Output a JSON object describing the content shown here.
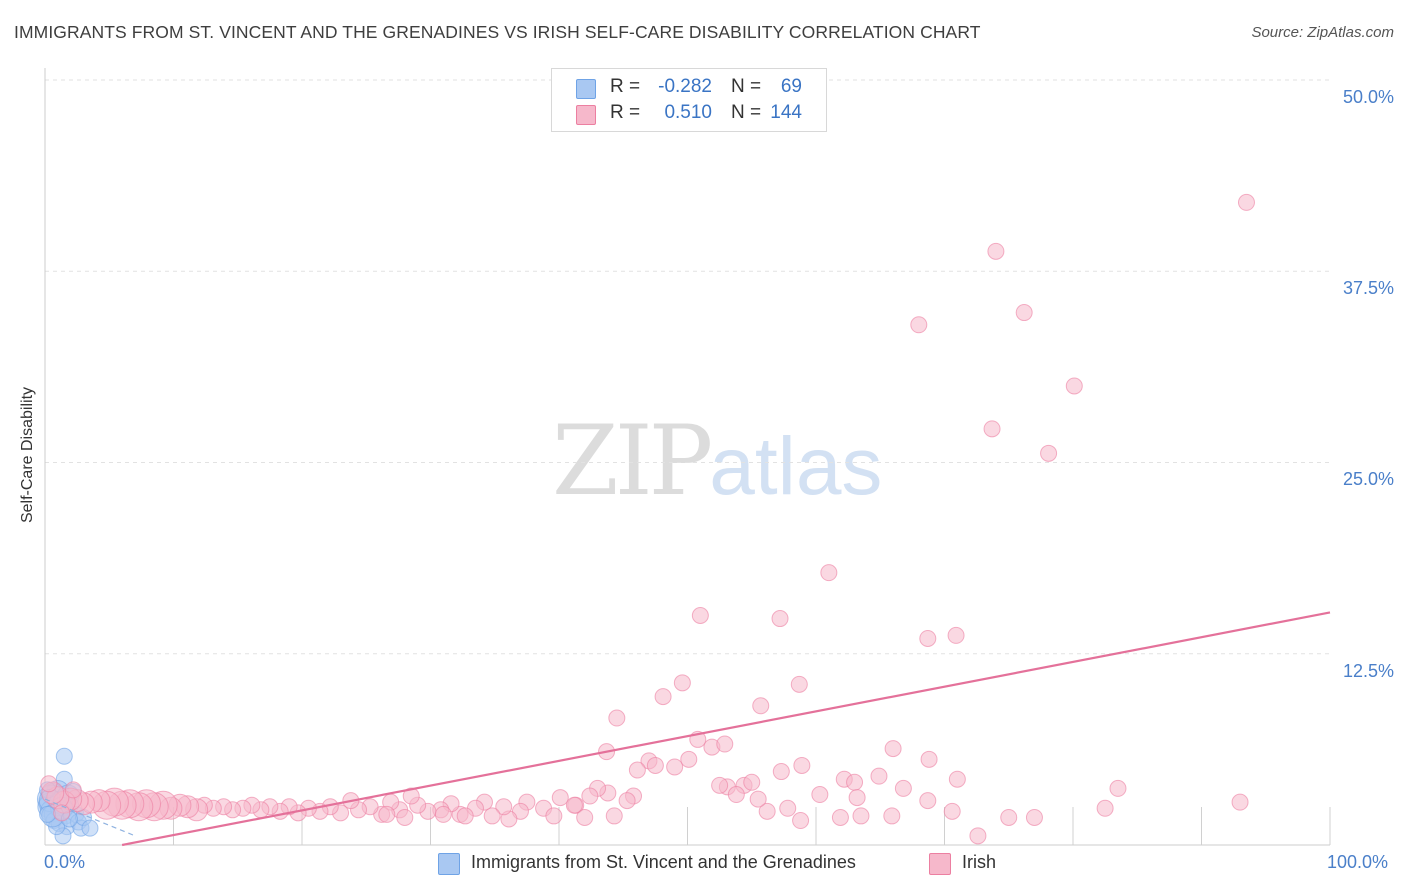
{
  "title": "IMMIGRANTS FROM ST. VINCENT AND THE GRENADINES VS IRISH SELF-CARE DISABILITY CORRELATION CHART",
  "source": "Source: ZipAtlas.com",
  "watermark": {
    "zip": "ZIP",
    "atlas": "atlas"
  },
  "legend": {
    "rows": [
      {
        "r_label": "R =",
        "r_value": "-0.282",
        "n_label": "N =",
        "n_value": "69",
        "color": "#a9c8f2"
      },
      {
        "r_label": "R =",
        "r_value": "0.510",
        "n_label": "N =",
        "n_value": "144",
        "color": "#f6b8cb"
      }
    ]
  },
  "bottom_legend": [
    {
      "label": "Immigrants from St. Vincent and the Grenadines",
      "color": "#a9c8f2"
    },
    {
      "label": "Irish",
      "color": "#f6b8cb"
    }
  ],
  "chart_data": {
    "type": "scatter",
    "title": "IMMIGRANTS FROM ST. VINCENT AND THE GRENADINES VS IRISH SELF-CARE DISABILITY CORRELATION CHART",
    "xlabel": "",
    "ylabel": "Self-Care Disability",
    "xlim": [
      0,
      100
    ],
    "ylim": [
      0,
      50
    ],
    "x_tick_labels": [
      {
        "value": 0,
        "label": "0.0%"
      },
      {
        "value": 100,
        "label": "100.0%"
      }
    ],
    "y_tick_labels": [
      {
        "value": 12.5,
        "label": "12.5%"
      },
      {
        "value": 25.0,
        "label": "25.0%"
      },
      {
        "value": 37.5,
        "label": "37.5%"
      },
      {
        "value": 50.0,
        "label": "50.0%"
      }
    ],
    "grid": true,
    "series": [
      {
        "name": "Immigrants from St. Vincent and the Grenadines",
        "color": "#6fa3e6",
        "fill": "#a9c8f2",
        "trend": {
          "x": [
            0,
            7.0
          ],
          "y": [
            3.0,
            0.6
          ],
          "style": "dashed"
        },
        "points": [
          [
            1.5,
            5.8,
            1
          ],
          [
            1.5,
            4.3,
            1
          ],
          [
            1.0,
            3.5,
            2
          ],
          [
            0.6,
            3.3,
            2
          ],
          [
            0.5,
            3.0,
            3
          ],
          [
            0.4,
            2.7,
            2
          ],
          [
            0.3,
            2.5,
            2
          ],
          [
            0.5,
            2.2,
            2
          ],
          [
            0.8,
            2.0,
            2
          ],
          [
            1.2,
            2.8,
            2
          ],
          [
            1.8,
            3.2,
            2
          ],
          [
            2.0,
            2.6,
            1
          ],
          [
            1.6,
            2.1,
            2
          ],
          [
            2.4,
            2.0,
            1
          ],
          [
            0.7,
            1.6,
            1
          ],
          [
            1.1,
            1.4,
            1
          ],
          [
            1.7,
            1.2,
            1
          ],
          [
            2.6,
            1.5,
            1
          ],
          [
            2.8,
            1.1,
            1
          ],
          [
            3.0,
            1.8,
            1
          ],
          [
            3.5,
            1.1,
            1
          ],
          [
            1.4,
            0.6,
            1
          ],
          [
            0.9,
            1.2,
            1
          ],
          [
            0.2,
            3.6,
            1
          ],
          [
            2.2,
            3.5,
            1
          ],
          [
            0.4,
            2.9,
            2
          ],
          [
            1.3,
            2.4,
            2
          ],
          [
            0.6,
            1.9,
            2
          ],
          [
            1.9,
            1.7,
            1
          ],
          [
            0.2,
            2.0,
            1
          ]
        ]
      },
      {
        "name": "Irish",
        "color": "#ec7fa1",
        "fill": "#f6b8cb",
        "trend": {
          "x": [
            6.0,
            100
          ],
          "y": [
            0.0,
            15.2
          ],
          "style": "solid"
        },
        "points": [
          [
            93.5,
            42.0,
            1
          ],
          [
            74.0,
            38.8,
            1
          ],
          [
            68.0,
            34.0,
            1
          ],
          [
            76.2,
            34.8,
            1
          ],
          [
            80.1,
            30.0,
            1
          ],
          [
            73.7,
            27.2,
            1
          ],
          [
            78.1,
            25.6,
            1
          ],
          [
            61.0,
            17.8,
            1
          ],
          [
            51.0,
            15.0,
            1
          ],
          [
            57.2,
            14.8,
            1
          ],
          [
            68.7,
            13.5,
            1
          ],
          [
            70.9,
            13.7,
            1
          ],
          [
            49.6,
            10.6,
            1
          ],
          [
            48.1,
            9.7,
            1
          ],
          [
            58.7,
            10.5,
            1
          ],
          [
            55.7,
            9.1,
            1
          ],
          [
            44.5,
            8.3,
            1
          ],
          [
            51.9,
            6.4,
            1
          ],
          [
            52.9,
            6.6,
            1
          ],
          [
            66.0,
            6.3,
            1
          ],
          [
            68.8,
            5.6,
            1
          ],
          [
            43.7,
            6.1,
            1
          ],
          [
            47.0,
            5.5,
            1
          ],
          [
            47.5,
            5.2,
            1
          ],
          [
            49.0,
            5.1,
            1
          ],
          [
            50.1,
            5.6,
            1
          ],
          [
            57.3,
            4.8,
            1
          ],
          [
            58.9,
            5.2,
            1
          ],
          [
            46.1,
            4.9,
            1
          ],
          [
            62.2,
            4.3,
            1
          ],
          [
            63.0,
            4.1,
            1
          ],
          [
            64.9,
            4.5,
            1
          ],
          [
            71.0,
            4.3,
            1
          ],
          [
            83.5,
            3.7,
            1
          ],
          [
            93.0,
            2.8,
            1
          ],
          [
            54.4,
            3.9,
            1
          ],
          [
            55.0,
            4.1,
            1
          ],
          [
            53.1,
            3.8,
            1
          ],
          [
            60.3,
            3.3,
            1
          ],
          [
            63.2,
            3.1,
            1
          ],
          [
            68.7,
            2.9,
            1
          ],
          [
            70.6,
            2.2,
            1
          ],
          [
            72.6,
            0.6,
            1
          ],
          [
            75.0,
            1.8,
            1
          ],
          [
            61.9,
            1.8,
            1
          ],
          [
            63.5,
            1.9,
            1
          ],
          [
            57.8,
            2.4,
            1
          ],
          [
            56.2,
            2.2,
            1
          ],
          [
            55.5,
            3.0,
            1
          ],
          [
            53.8,
            3.3,
            1
          ],
          [
            45.8,
            3.2,
            1
          ],
          [
            43.8,
            3.4,
            1
          ],
          [
            45.3,
            2.9,
            1
          ],
          [
            43.0,
            3.7,
            1
          ],
          [
            42.4,
            3.2,
            1
          ],
          [
            41.3,
            2.6,
            1
          ],
          [
            40.1,
            3.1,
            1
          ],
          [
            38.8,
            2.4,
            1
          ],
          [
            37.5,
            2.8,
            1
          ],
          [
            37.0,
            2.2,
            1
          ],
          [
            36.1,
            1.7,
            1
          ],
          [
            35.7,
            2.5,
            1
          ],
          [
            34.8,
            1.9,
            1
          ],
          [
            34.2,
            2.8,
            1
          ],
          [
            33.5,
            2.4,
            1
          ],
          [
            32.3,
            2.0,
            1
          ],
          [
            31.6,
            2.7,
            1
          ],
          [
            30.8,
            2.3,
            1
          ],
          [
            29.8,
            2.2,
            1
          ],
          [
            29.0,
            2.6,
            1
          ],
          [
            28.5,
            3.2,
            1
          ],
          [
            27.6,
            2.3,
            1
          ],
          [
            26.9,
            2.8,
            1
          ],
          [
            26.2,
            2.0,
            1
          ],
          [
            25.3,
            2.5,
            1
          ],
          [
            24.4,
            2.3,
            1
          ],
          [
            23.8,
            2.9,
            1
          ],
          [
            23.0,
            2.1,
            1
          ],
          [
            22.2,
            2.5,
            1
          ],
          [
            21.4,
            2.2,
            1
          ],
          [
            20.5,
            2.4,
            1
          ],
          [
            19.7,
            2.1,
            1
          ],
          [
            19.0,
            2.5,
            1
          ],
          [
            18.3,
            2.2,
            1
          ],
          [
            17.5,
            2.5,
            1
          ],
          [
            16.8,
            2.3,
            1
          ],
          [
            16.1,
            2.6,
            1
          ],
          [
            15.4,
            2.4,
            1
          ],
          [
            14.6,
            2.3,
            1
          ],
          [
            13.9,
            2.5,
            1
          ],
          [
            13.1,
            2.4,
            1
          ],
          [
            12.4,
            2.6,
            1
          ],
          [
            11.8,
            2.3,
            2
          ],
          [
            11.1,
            2.5,
            2
          ],
          [
            10.5,
            2.6,
            2
          ],
          [
            9.8,
            2.4,
            2
          ],
          [
            9.2,
            2.6,
            3
          ],
          [
            8.5,
            2.5,
            3
          ],
          [
            7.9,
            2.7,
            3
          ],
          [
            7.3,
            2.5,
            3
          ],
          [
            6.6,
            2.7,
            3
          ],
          [
            6.0,
            2.6,
            3
          ],
          [
            5.4,
            2.8,
            3
          ],
          [
            4.8,
            2.6,
            3
          ],
          [
            4.2,
            2.9,
            2
          ],
          [
            3.6,
            2.8,
            2
          ],
          [
            3.0,
            2.7,
            2
          ],
          [
            2.5,
            2.9,
            2
          ],
          [
            2.0,
            3.0,
            2
          ],
          [
            1.5,
            2.8,
            2
          ],
          [
            1.0,
            3.1,
            2
          ],
          [
            0.6,
            3.4,
            2
          ],
          [
            0.3,
            4.0,
            1
          ],
          [
            2.2,
            3.6,
            1
          ],
          [
            1.3,
            2.1,
            1
          ],
          [
            39.6,
            1.9,
            1
          ],
          [
            42.0,
            1.8,
            1
          ],
          [
            44.3,
            1.9,
            1
          ],
          [
            41.2,
            2.6,
            1
          ],
          [
            32.7,
            1.9,
            1
          ],
          [
            28.0,
            1.8,
            1
          ],
          [
            26.6,
            2.0,
            1
          ],
          [
            31.0,
            2.0,
            1
          ],
          [
            65.9,
            1.9,
            1
          ],
          [
            77.0,
            1.8,
            1
          ],
          [
            82.5,
            2.4,
            1
          ],
          [
            50.8,
            6.9,
            1
          ],
          [
            52.5,
            3.9,
            1
          ],
          [
            58.8,
            1.6,
            1
          ],
          [
            66.8,
            3.7,
            1
          ]
        ]
      }
    ]
  }
}
